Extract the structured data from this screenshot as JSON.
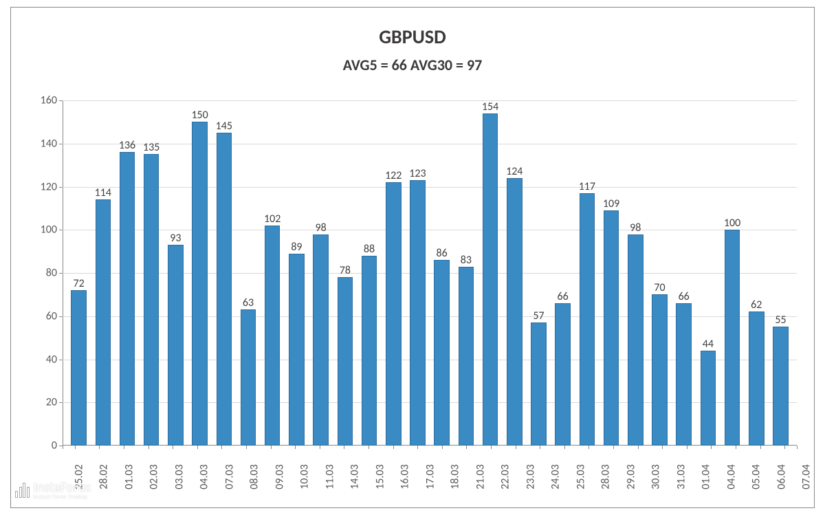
{
  "chart": {
    "type": "bar",
    "title": "GBPUSD",
    "title_fontsize": 28,
    "title_color": "#3b3838",
    "subtitle": "AVG5 = 66 AVG30 = 97",
    "subtitle_fontsize": 22,
    "subtitle_color": "#3b3838",
    "background_color": "#ffffff",
    "border_color": "#888888",
    "grid_color": "#d9d9d9",
    "axis_color": "#888888",
    "ylim": [
      0,
      160
    ],
    "ytick_step": 20,
    "yticks": [
      0,
      20,
      40,
      60,
      80,
      100,
      120,
      140,
      160
    ],
    "tick_label_color": "#595959",
    "tick_label_fontsize": 16,
    "data_label_color": "#404040",
    "data_label_fontsize": 16,
    "bar_fill_color": "#3a8ac3",
    "bar_border_color": "#2e6e9e",
    "bar_width": 0.64,
    "categories": [
      "25.02",
      "28.02",
      "01.03",
      "02.03",
      "03.03",
      "04.03",
      "07.03",
      "08.03",
      "09.03",
      "10.03",
      "11.03",
      "14.03",
      "15.03",
      "16.03",
      "17.03",
      "18.03",
      "21.03",
      "22.03",
      "23.03",
      "24.03",
      "25.03",
      "28.03",
      "29.03",
      "30.03",
      "31.03",
      "01.04",
      "04.04",
      "05.04",
      "06.04",
      "07.04"
    ],
    "values": [
      72,
      114,
      136,
      135,
      93,
      150,
      145,
      63,
      102,
      89,
      98,
      78,
      88,
      122,
      123,
      86,
      83,
      154,
      124,
      57,
      66,
      117,
      109,
      98,
      70,
      66,
      44,
      100,
      62,
      55
    ]
  },
  "watermark": {
    "main": "InstaForex",
    "sub": "Instant Forex Trading",
    "color": "#ffffff"
  }
}
